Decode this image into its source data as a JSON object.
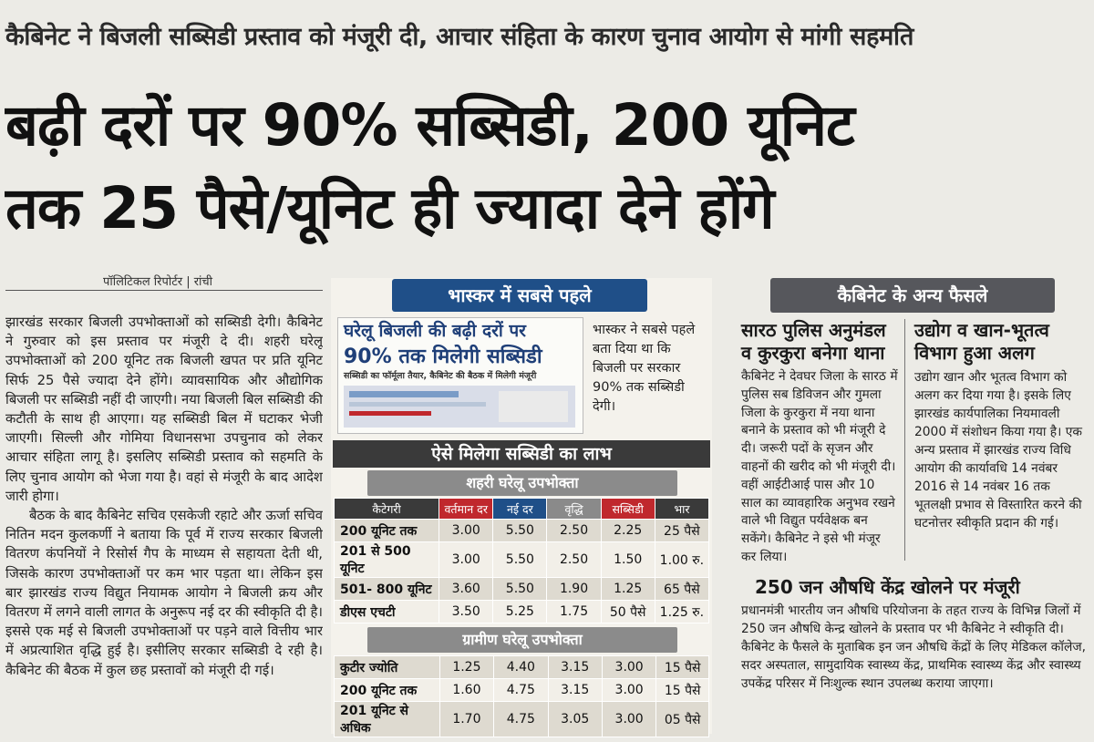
{
  "kicker": "कैबिनेट ने बिजली सब्सिडी प्रस्ताव को मंजूरी दी, आचार संहिता के कारण चुनाव आयोग से मांगी सहमति",
  "headline": {
    "line1": "बढ़ी दरों पर 90% सब्सिडी, 200 यूनिट",
    "line2": "तक 25  पैसे/यूनिट ही ज्यादा देने होंगे"
  },
  "byline": "पॉलिटिकल रिपोर्टर | रांची",
  "main_story": {
    "p1": "झारखंड सरकार बिजली उपभोक्ताओं को सब्सिडी देगी। कैबिनेट ने गुरुवार को इस प्रस्ताव पर मंजूरी दे दी। शहरी घरेलू उपभोक्ताओं को 200 यूनिट तक बिजली खपत पर प्रति यूनिट सिर्फ 25 पैसे ज्यादा देने होंगे। व्यावसायिक और औद्योगिक बिजली पर सब्सिडी नहीं दी जाएगी। नया बिजली बिल सब्सिडी की कटौती के साथ ही आएगा। यह सब्सिडी बिल में घटाकर भेजी जाएगी। सिल्ली और गोमिया विधानसभा उपचुनाव को लेकर आचार संहिता लागू है। इसलिए सब्सिडी प्रस्ताव को सहमति के लिए चुनाव आयोग को भेजा गया है। वहां से मंजूरी के बाद आदेश जारी होगा।",
    "p2": "बैठक के बाद कैबिनेट सचिव एसकेजी रहाटे और ऊर्जा सचिव नितिन मदन कुलकर्णी ने बताया कि पूर्व में राज्य सरकार बिजली वितरण कंपनियों ने रिसोर्स गैप के माध्यम से सहायता देती थी, जिसके कारण उपभोक्ताओं पर कम भार पड़ता था। लेकिन इस बार झारखंड राज्य विद्युत नियामक आयोग ने बिजली क्रय और वितरण में लगने वाली लागत के अनुरूप नई दर की स्वीकृति दी है। इससे एक मई से बिजली उपभोक्ताओं पर पड़ने वाले वित्तीय भार में अप्रत्याशित वृद्धि हुई है। इसीलिए सरकार सब्सिडी दे रही है। कैबिनेट की बैठक में कुल छह प्रस्तावों को मंजूरी दी गई।"
  },
  "bhaskar": {
    "header": "भास्कर में सबसे पहले",
    "clip_line1": "घरेलू बिजली की बढ़ी दरों पर",
    "clip_line2": "90% तक मिलेगी सब्सिडी",
    "clip_sub": "सब्सिडी का फॉर्मूला तैयार, कैबिनेट की बैठक में मिलेगी मंजूरी",
    "side_text": "भास्कर ने सबसे पहले बता दिया था कि बिजली पर सरकार 90% तक सब्सिडी देगी।"
  },
  "benefit": {
    "title": "ऐसे मिलेगा सब्सिडी का लाभ",
    "urban_title": "शहरी घरेलू उपभोक्ता",
    "rural_title": "ग्रामीण घरेलू उपभोक्ता",
    "columns": [
      "कैटेगरी",
      "वर्तमान दर",
      "नई दर",
      "वृद्धि",
      "सब्सिडी",
      "भार"
    ],
    "column_colors": [
      "#3a3a3a",
      "#c0282d",
      "#1f4f88",
      "#8a8a8a",
      "#c0282d",
      "#3a3a3a"
    ],
    "urban_rows": [
      [
        "200 यूनिट तक",
        "3.00",
        "5.50",
        "2.50",
        "2.25",
        "25 पैसे"
      ],
      [
        "201 से 500 यूनिट",
        "3.00",
        "5.50",
        "2.50",
        "1.50",
        "1.00 रु."
      ],
      [
        "501- 800 यूनिट",
        "3.60",
        "5.50",
        "1.90",
        "1.25",
        "65 पैसे"
      ],
      [
        "डीएस एचटी",
        "3.50",
        "5.25",
        "1.75",
        "50 पैसे",
        "1.25 रु."
      ]
    ],
    "rural_rows": [
      [
        "कुटीर ज्योति",
        "1.25",
        "4.40",
        "3.15",
        "3.00",
        "15 पैसे"
      ],
      [
        "200 यूनिट तक",
        "1.60",
        "4.75",
        "3.15",
        "3.00",
        "15 पैसे"
      ],
      [
        "201 यूनिट से अधिक",
        "1.70",
        "4.75",
        "3.05",
        "3.00",
        "05 पैसे"
      ]
    ]
  },
  "cabinet": {
    "header": "कैबिनेट के अन्य फैसले",
    "s1_title": "सारठ पुलिस अनुमंडल व कुरकुरा बनेगा थाना",
    "s1_text": "कैबिनेट ने देवघर जिला के सारठ में पुलिस सब डिविजन और गुमला जिला के कुरकुरा में नया थाना बनाने के प्रस्ताव को भी मंजूरी दे दी। जरूरी पदों के सृजन और वाहनों की खरीद को भी मंजूरी दी। वहीं आईटीआई पास और 10 साल का व्यावहारिक अनुभव रखने वाले भी विद्युत पर्यवेक्षक बन सकेंगे। कैबिनेट ने इसे भी मंजूर कर लिया।",
    "s2_title": "उद्योग व खान-भूतत्व विभाग हुआ अलग",
    "s2_text": "उद्योग खान और भूतत्व विभाग को अलग कर दिया गया है। इसके लिए झारखंड कार्यपालिका नियमावली 2000 में संशोधन किया गया है। एक अन्य प्रस्ताव में झारखंड राज्य विधि आयोग की कार्यावधि 14 नवंबर 2016 से 14 नवंबर 16 तक भूतलक्षी प्रभाव से विस्तारित करने की घटनोत्तर स्वीकृति प्रदान की गई।",
    "s3_title": "250 जन औषधि केंद्र खोलने पर मंजूरी",
    "s3_text": "प्रधानमंत्री भारतीय जन औषधि परियोजना के तहत राज्य के विभिन्न जिलों में 250 जन औषधि केन्द्र खोलने के प्रस्ताव पर भी कैबिनेट ने स्वीकृति दी। कैबिनेट के फैसले के मुताबिक इन जन औषधि केंद्रों के लिए मेडिकल कॉलेज, सदर अस्पताल, सामुदायिक स्वास्थ्य केंद्र, प्राथमिक स्वास्थ्य केंद्र और स्वास्थ्य उपकेंद्र परिसर में निःशुल्क स्थान उपलब्ध कराया जाएगा।"
  }
}
